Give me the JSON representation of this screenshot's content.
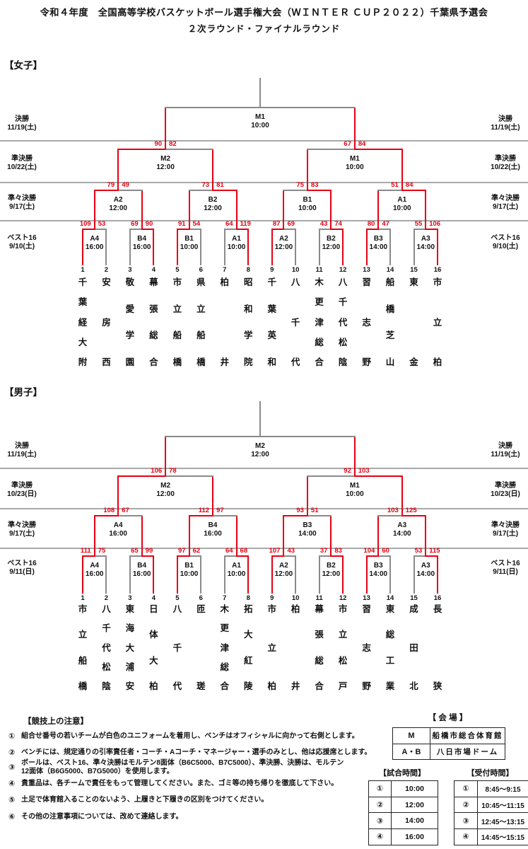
{
  "title": {
    "line1": "令和４年度　全国高等学校バスケットボール選手権大会（ＷＩＮＴＥＲ ＣＵＰ２０２２）千葉県予選会",
    "line2": "２次ラウンド・ファイナルラウンド"
  },
  "colors": {
    "red": "#e60012",
    "gray": "#8a8a8a",
    "divider": "#a9a9a9",
    "text": "#111111",
    "border": "#222222"
  },
  "brackets": [
    {
      "heading": "【女子】",
      "rounds": [
        {
          "name": "決勝",
          "date": "11/19(土)"
        },
        {
          "name": "準決勝",
          "date": "10/22(土)"
        },
        {
          "name": "準々決勝",
          "date": "9/17(土)"
        },
        {
          "name": "ベスト16",
          "date": "9/10(土)"
        }
      ],
      "teams": [
        {
          "no": "1",
          "name": "千葉経大附"
        },
        {
          "no": "2",
          "name": "安房西"
        },
        {
          "no": "3",
          "name": "敬愛学園"
        },
        {
          "no": "4",
          "name": "幕張総合"
        },
        {
          "no": "5",
          "name": "市立船橋"
        },
        {
          "no": "6",
          "name": "県立船橋"
        },
        {
          "no": "7",
          "name": "柏井"
        },
        {
          "no": "8",
          "name": "昭和学院"
        },
        {
          "no": "9",
          "name": "千葉英和"
        },
        {
          "no": "10",
          "name": "八千代"
        },
        {
          "no": "11",
          "name": "木更津総合"
        },
        {
          "no": "12",
          "name": "八千代松陰"
        },
        {
          "no": "13",
          "name": "習志野"
        },
        {
          "no": "14",
          "name": "船橋芝山"
        },
        {
          "no": "15",
          "name": "東金"
        },
        {
          "no": "16",
          "name": "市立柏"
        }
      ],
      "r16": [
        {
          "code": "A4",
          "time": "16:00",
          "s1": 109,
          "s2": 53
        },
        {
          "code": "B4",
          "time": "16:00",
          "s1": 69,
          "s2": 90
        },
        {
          "code": "B1",
          "time": "10:00",
          "s1": 91,
          "s2": 54
        },
        {
          "code": "A1",
          "time": "10:00",
          "s1": 64,
          "s2": 119
        },
        {
          "code": "A2",
          "time": "12:00",
          "s1": 87,
          "s2": 69
        },
        {
          "code": "B2",
          "time": "12:00",
          "s1": 43,
          "s2": 74
        },
        {
          "code": "B3",
          "time": "14:00",
          "s1": 80,
          "s2": 47
        },
        {
          "code": "A3",
          "time": "14:00",
          "s1": 55,
          "s2": 106
        }
      ],
      "qf": [
        {
          "code": "A2",
          "time": "12:00",
          "s1": 79,
          "s2": 49
        },
        {
          "code": "B2",
          "time": "12:00",
          "s1": 73,
          "s2": 81
        },
        {
          "code": "B1",
          "time": "10:00",
          "s1": 75,
          "s2": 83
        },
        {
          "code": "A1",
          "time": "10:00",
          "s1": 51,
          "s2": 84
        }
      ],
      "sf": [
        {
          "code": "M2",
          "time": "12:00",
          "s1": 90,
          "s2": 82
        },
        {
          "code": "M1",
          "time": "10:00",
          "s1": 67,
          "s2": 84
        }
      ],
      "final": {
        "code": "M1",
        "time": "10:00",
        "s1": null,
        "s2": null
      }
    },
    {
      "heading": "【男子】",
      "rounds": [
        {
          "name": "決勝",
          "date": "11/19(土)"
        },
        {
          "name": "準決勝",
          "date": "10/23(日)"
        },
        {
          "name": "準々決勝",
          "date": "9/17(土)"
        },
        {
          "name": "ベスト16",
          "date": "9/11(日)"
        }
      ],
      "teams": [
        {
          "no": "1",
          "name": "市立船橋"
        },
        {
          "no": "2",
          "name": "八千代松陰"
        },
        {
          "no": "3",
          "name": "東海大浦安"
        },
        {
          "no": "4",
          "name": "日体大柏"
        },
        {
          "no": "5",
          "name": "八千代"
        },
        {
          "no": "6",
          "name": "匝瑳"
        },
        {
          "no": "7",
          "name": "木更津総合"
        },
        {
          "no": "8",
          "name": "拓大紅陵"
        },
        {
          "no": "9",
          "name": "市立柏"
        },
        {
          "no": "10",
          "name": "柏井"
        },
        {
          "no": "11",
          "name": "幕張総合"
        },
        {
          "no": "12",
          "name": "市立松戸"
        },
        {
          "no": "13",
          "name": "習志野"
        },
        {
          "no": "14",
          "name": "東総工業"
        },
        {
          "no": "15",
          "name": "成田北"
        },
        {
          "no": "16",
          "name": "長狭"
        }
      ],
      "r16": [
        {
          "code": "A4",
          "time": "16:00",
          "s1": 111,
          "s2": 75
        },
        {
          "code": "B4",
          "time": "16:00",
          "s1": 65,
          "s2": 99
        },
        {
          "code": "B1",
          "time": "10:00",
          "s1": 97,
          "s2": 62
        },
        {
          "code": "A1",
          "time": "10:00",
          "s1": 64,
          "s2": 68
        },
        {
          "code": "A2",
          "time": "12:00",
          "s1": 107,
          "s2": 43
        },
        {
          "code": "B2",
          "time": "12:00",
          "s1": 37,
          "s2": 83
        },
        {
          "code": "B3",
          "time": "14:00",
          "s1": 104,
          "s2": 60
        },
        {
          "code": "A3",
          "time": "14:00",
          "s1": 53,
          "s2": 115
        }
      ],
      "qf": [
        {
          "code": "A4",
          "time": "16:00",
          "s1": 108,
          "s2": 67
        },
        {
          "code": "B4",
          "time": "16:00",
          "s1": 112,
          "s2": 97
        },
        {
          "code": "B3",
          "time": "14:00",
          "s1": 93,
          "s2": 51
        },
        {
          "code": "A3",
          "time": "14:00",
          "s1": 103,
          "s2": 125
        }
      ],
      "sf": [
        {
          "code": "M2",
          "time": "12:00",
          "s1": 106,
          "s2": 78
        },
        {
          "code": "M1",
          "time": "10:00",
          "s1": 92,
          "s2": 103
        }
      ],
      "final": {
        "code": "M2",
        "time": "12:00",
        "s1": null,
        "s2": null
      }
    }
  ],
  "notes": {
    "heading": "【競技上の注意】",
    "items": [
      {
        "num": "①",
        "text": "組合せ番号の若いチームが白色のユニフォームを着用し、ベンチはオフィシャルに向かって右側とします。"
      },
      {
        "num": "②",
        "text": "ベンチには、規定通りの引率責任者・コーチ・Aコーチ・マネージャー・選手のみとし、他は応援席とします。"
      },
      {
        "num": "③",
        "text": "ボールは、ベスト16、準々決勝はモルテン8面体（B6C5000、B7C5000）、準決勝、決勝は、モルテン\n12面体（B6G5000、B7G5000）を使用します。"
      },
      {
        "num": "④",
        "text": "貴重品は、各チームで責任をもって管理してください。また、ゴミ等の持ち帰りを徹底して下さい。"
      },
      {
        "num": "⑤",
        "text": "土足で体育館入ることのないよう、上履きと下履きの区別をつけてください。"
      },
      {
        "num": "⑥",
        "text": "その他の注意事項については、改めて連絡します。"
      }
    ]
  },
  "venue": {
    "title": "【 会 場 】",
    "rows": [
      [
        "M",
        "船橋市総合体育館"
      ],
      [
        "A・B",
        "八日市場ドーム"
      ]
    ]
  },
  "game_times": {
    "title": "【試合時間】",
    "rows": [
      [
        "①",
        "10:00"
      ],
      [
        "②",
        "12:00"
      ],
      [
        "③",
        "14:00"
      ],
      [
        "④",
        "16:00"
      ]
    ]
  },
  "reception_times": {
    "title": "【受付時間】",
    "rows": [
      [
        "①",
        "8:45～9:15"
      ],
      [
        "②",
        "10:45～11:15"
      ],
      [
        "③",
        "12:45～13:15"
      ],
      [
        "④",
        "14:45～15:15"
      ]
    ]
  }
}
